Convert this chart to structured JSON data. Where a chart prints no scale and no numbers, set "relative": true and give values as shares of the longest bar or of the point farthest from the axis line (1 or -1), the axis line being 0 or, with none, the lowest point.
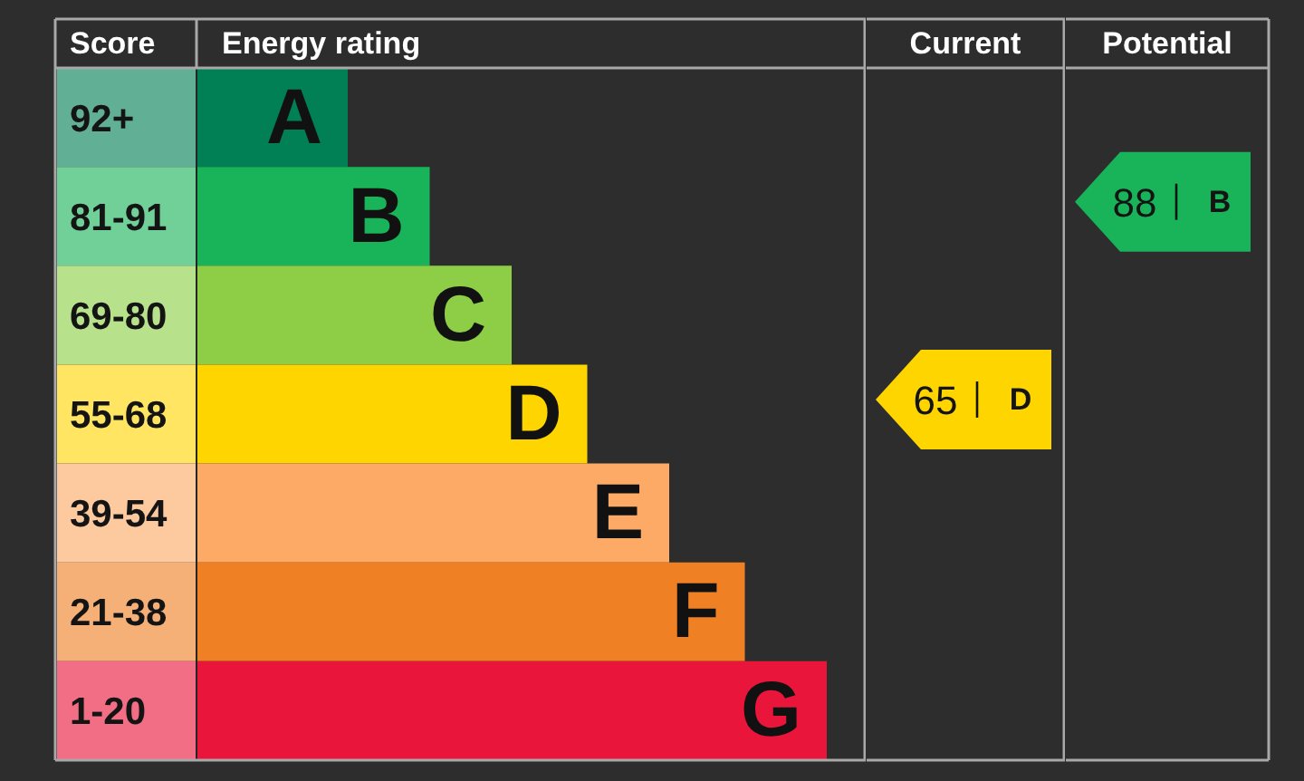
{
  "chart_data": [
    {
      "type": "bar",
      "orientation": "horizontal",
      "relative": true,
      "xlabel": "Energy rating",
      "ylabel": "Score",
      "categories": [
        "92+",
        "81-91",
        "69-80",
        "55-68",
        "39-54",
        "21-38",
        "1-20"
      ],
      "values": [
        0.24,
        0.37,
        0.5,
        0.62,
        0.75,
        0.87,
        1
      ],
      "colors": [
        "#008054",
        "#19b459",
        "#8dce46",
        "#ffd500",
        "#fcaa65",
        "#ef8023",
        "#e9153b"
      ],
      "annotations": [
        {
          "text": "A",
          "x": 0.24,
          "y": "92+"
        },
        {
          "text": "B",
          "x": 0.37,
          "y": "81-91"
        },
        {
          "text": "C",
          "x": 0.5,
          "y": "69-80"
        },
        {
          "text": "D",
          "x": 0.62,
          "y": "55-68"
        },
        {
          "text": "E",
          "x": 0.75,
          "y": "39-54"
        },
        {
          "text": "F",
          "x": 0.87,
          "y": "21-38"
        },
        {
          "text": "G",
          "x": 1,
          "y": "1-20"
        }
      ]
    },
    {
      "type": "other",
      "title": "Current",
      "values": [
        null,
        null,
        null,
        65,
        null,
        null,
        null
      ],
      "data_labels": true,
      "annotations": [
        "D"
      ],
      "color": "#ffd500"
    },
    {
      "type": "other",
      "title": "Potential",
      "values": [
        null,
        88,
        null,
        null,
        null,
        null,
        null
      ],
      "data_labels": true,
      "annotations": [
        "B"
      ],
      "color": "#19b459"
    }
  ]
}
